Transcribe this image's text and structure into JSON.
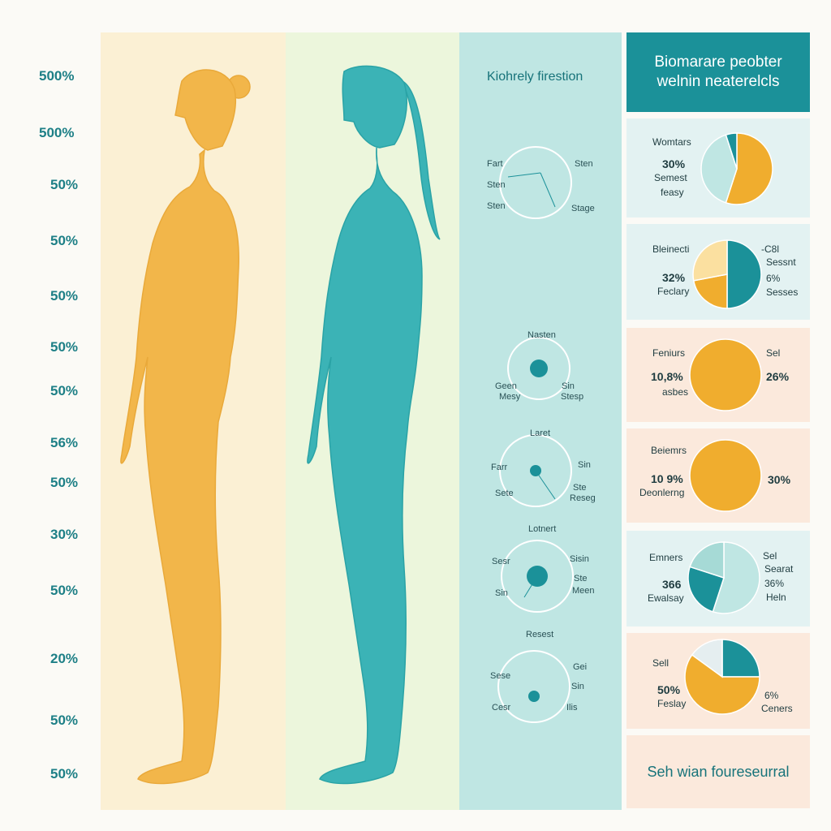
{
  "y_axis_labels": [
    "500%",
    "500%",
    "50%",
    "50%",
    "50%",
    "50%",
    "50%",
    "56%",
    "50%",
    "30%",
    "50%",
    "20%",
    "50%",
    "50%"
  ],
  "middle": {
    "title": "Kiohrely firestion",
    "circles": [
      {
        "header": "",
        "left_labels": [
          "Fart",
          "Sten",
          "Sten"
        ],
        "right_labels": [
          "Sten",
          "Stage"
        ]
      },
      {
        "header": "Nasten",
        "left_labels": [
          "Geen",
          "Mesy"
        ],
        "right_labels": [
          "Sin",
          "Stesp"
        ]
      },
      {
        "header": "Laret",
        "left_labels": [
          "Farr",
          "Sete"
        ],
        "right_labels": [
          "Sin",
          "Ste",
          "Reseg"
        ]
      },
      {
        "header": "Lotnert",
        "left_labels": [
          "Sesr",
          "Sin"
        ],
        "right_labels": [
          "Sisin",
          "Ste",
          "Meen"
        ]
      },
      {
        "header": "Resest",
        "left_labels": [
          "Sese",
          "Cesr"
        ],
        "right_labels": [
          "Gei",
          "Sin",
          "Ilis"
        ]
      }
    ]
  },
  "right": {
    "header_line1": "Biomarare peobter",
    "header_line2": "welnin neaterelcls",
    "footer": "Seh wian foureseurral"
  },
  "chart_data": [
    {
      "type": "pie",
      "title": "Womtars",
      "labels": [
        "30%",
        "Semest",
        "feasy"
      ],
      "slices": [
        {
          "value": 55,
          "color": "#f0ad2e"
        },
        {
          "value": 40,
          "color": "#bfe6e3"
        },
        {
          "value": 5,
          "color": "#1b9199"
        }
      ]
    },
    {
      "type": "pie",
      "title": "Bleinecti",
      "labels": [
        "32%",
        "Feclary"
      ],
      "right_labels": [
        "-C8l",
        "Sessnt",
        "6%",
        "Sesses"
      ],
      "slices": [
        {
          "value": 50,
          "color": "#1b9199"
        },
        {
          "value": 22,
          "color": "#f0ad2e"
        },
        {
          "value": 28,
          "color": "#fbe0a0"
        }
      ]
    },
    {
      "type": "pie",
      "title": "Feniurs",
      "labels": [
        "10,8%",
        "asbes"
      ],
      "right_labels": [
        "Sel",
        "26%"
      ],
      "slices": [
        {
          "value": 100,
          "color": "#f0ad2e"
        }
      ]
    },
    {
      "type": "pie",
      "title": "Beiemrs",
      "labels": [
        "10 9%",
        "Deonlerng"
      ],
      "right_labels": [
        "30%"
      ],
      "slices": [
        {
          "value": 100,
          "color": "#f0ad2e"
        }
      ]
    },
    {
      "type": "pie",
      "title": "Emners",
      "labels": [
        "366",
        "Ewalsay"
      ],
      "right_labels": [
        "Sel",
        "Searat",
        "36%",
        "Heln"
      ],
      "slices": [
        {
          "value": 55,
          "color": "#bfe6e3"
        },
        {
          "value": 25,
          "color": "#1b9199"
        },
        {
          "value": 20,
          "color": "#a6dad6"
        }
      ]
    },
    {
      "type": "pie",
      "title": "Sell",
      "labels": [
        "50%",
        "Feslay"
      ],
      "right_labels": [
        "6%",
        "Ceners"
      ],
      "slices": [
        {
          "value": 25,
          "color": "#1b9199"
        },
        {
          "value": 60,
          "color": "#f0ad2e"
        },
        {
          "value": 15,
          "color": "#e5eef0"
        }
      ]
    }
  ]
}
